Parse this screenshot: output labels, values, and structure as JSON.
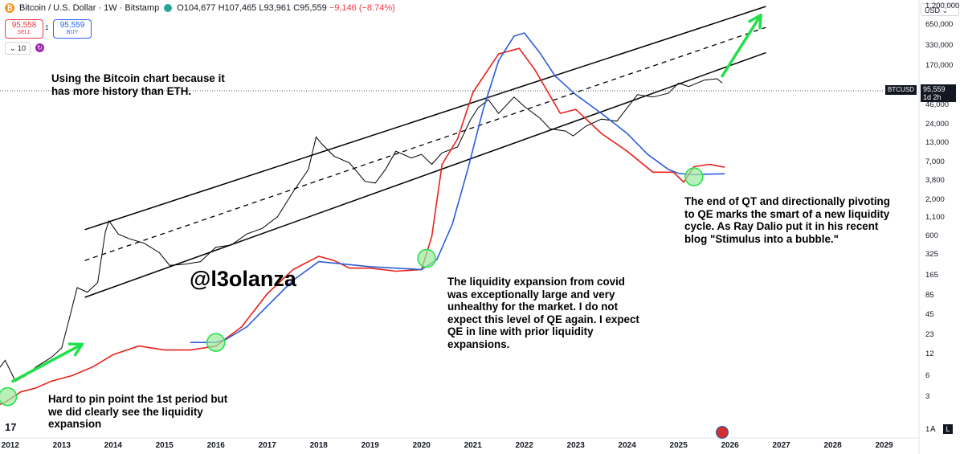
{
  "header": {
    "symbol_icon": "bitcoin-icon",
    "title": "Bitcoin / U.S. Dollar · 1W · Bitstamp",
    "ohlc": "O104,677 H107,465 L93,961 C95,559",
    "change": "−9,146 (−8.74%)"
  },
  "trade": {
    "sell_price": "95,558",
    "sell_label": "SELL",
    "spread": "1",
    "buy_price": "95,559",
    "buy_label": "BUY",
    "volume": "10"
  },
  "currency": "USD",
  "price_tag": {
    "ticker": "BTCUSD",
    "price": "95,559",
    "countdown": "1d 2h"
  },
  "y_ticks": [
    "1,200,000",
    "650,000",
    "330,000",
    "170,000",
    "46,000",
    "24,000",
    "13,000",
    "7,000",
    "3,800",
    "2,000",
    "1,100",
    "600",
    "325",
    "165",
    "85",
    "45",
    "23",
    "12",
    "6",
    "3",
    "1"
  ],
  "x_ticks": [
    "2012",
    "2013",
    "2014",
    "2015",
    "2016",
    "2017",
    "2018",
    "2019",
    "2020",
    "2021",
    "2022",
    "2023",
    "2024",
    "2025",
    "2026",
    "2027",
    "2028",
    "2029"
  ],
  "annotations": {
    "top_note": [
      "Using the Bitcoin chart because it",
      "has more history than ETH."
    ],
    "bottom_left": [
      "Hard to pin point the 1st period but",
      "we did clearly see the liquidity",
      "expansion"
    ],
    "middle": [
      "The liquidity expansion from covid",
      "was exceptionally large and very",
      "unhealthy for the market. I do not",
      "expect this level of QE again. I expect",
      "QE in line with prior liquidity",
      "expansions."
    ],
    "right": [
      "The end of QT and directionally pivoting",
      "to QE marks the smart of a new liquidity",
      "cycle. As Ray Dalio put it in his recent",
      "blog \"Stimulus into a bubble.\""
    ],
    "handle": "@l3olanza"
  },
  "buttons": {
    "auto": "A",
    "log": "L"
  },
  "colors": {
    "price": "#000000",
    "liquidity": "#e8211b",
    "liquidity_ma": "#2b5cd8",
    "arrow": "#22e04a",
    "circle": "#9be89b",
    "channel": "#000000"
  },
  "chart_data": {
    "type": "line",
    "y_scale": "log",
    "ylim": [
      1,
      1200000
    ],
    "xlim": [
      2011.8,
      2029.6
    ],
    "series": [
      {
        "x": [
          2011.5,
          2011.9,
          2012.1,
          2012.3,
          2012.5,
          2012.8,
          2013.0,
          2013.15,
          2013.3,
          2013.5,
          2013.7,
          2013.85,
          2013.92,
          2014.1,
          2014.3,
          2014.6,
          2014.9,
          2015.1,
          2015.4,
          2015.7,
          2016.0,
          2016.3,
          2016.6,
          2016.9,
          2017.2,
          2017.5,
          2017.8,
          2017.95,
          2018.05,
          2018.3,
          2018.6,
          2018.9,
          2019.1,
          2019.3,
          2019.5,
          2019.8,
          2020.0,
          2020.2,
          2020.4,
          2020.7,
          2020.95,
          2021.1,
          2021.3,
          2021.5,
          2021.8,
          2022.0,
          2022.3,
          2022.5,
          2022.8,
          2022.95,
          2023.2,
          2023.5,
          2023.8,
          2024.0,
          2024.2,
          2024.5,
          2024.8,
          2025.0,
          2025.2,
          2025.5,
          2025.75,
          2025.85
        ],
        "values": [
          4,
          10,
          5,
          6,
          8,
          11,
          15,
          40,
          110,
          95,
          130,
          700,
          1000,
          650,
          560,
          480,
          350,
          230,
          240,
          260,
          420,
          450,
          650,
          780,
          1150,
          2600,
          5500,
          16000,
          13000,
          8500,
          6800,
          3700,
          3500,
          5500,
          10000,
          8000,
          9000,
          6500,
          9500,
          11500,
          28000,
          42000,
          55000,
          35000,
          60000,
          44000,
          30000,
          21000,
          19500,
          16600,
          23000,
          29000,
          27000,
          42000,
          65000,
          60000,
          68000,
          95000,
          85000,
          105000,
          110000,
          95559
        ]
      },
      {
        "x": [
          2011.6,
          2011.9,
          2012.2,
          2012.5,
          2012.8,
          2013.2,
          2013.6,
          2014.0,
          2014.5,
          2015.0,
          2015.5,
          2016.0,
          2016.5,
          2017.0,
          2017.5,
          2018.0,
          2018.3,
          2018.6,
          2019.0,
          2019.5,
          2020.0,
          2020.2,
          2020.4,
          2020.7,
          2021.0,
          2021.5,
          2021.9,
          2022.2,
          2022.7,
          2023.0,
          2023.5,
          2024.0,
          2024.5,
          2024.9,
          2025.1,
          2025.3,
          2025.6,
          2025.9
        ],
        "values": [
          2,
          2.5,
          3.5,
          4,
          5,
          6,
          8,
          12,
          16,
          14,
          14,
          16,
          30,
          90,
          200,
          310,
          270,
          210,
          210,
          190,
          200,
          600,
          6500,
          15000,
          70000,
          250000,
          300000,
          150000,
          35000,
          40000,
          18000,
          10000,
          5000,
          5000,
          3600,
          6000,
          6500,
          5900
        ]
      },
      {
        "x": [
          2015.5,
          2016.0,
          2016.2,
          2016.6,
          2017.0,
          2017.5,
          2018.0,
          2018.5,
          2019.0,
          2019.5,
          2020.0,
          2020.3,
          2020.6,
          2020.9,
          2021.2,
          2021.5,
          2021.8,
          2022.0,
          2022.3,
          2022.6,
          2023.0,
          2023.5,
          2024.0,
          2024.4,
          2024.8,
          2025.0,
          2025.3,
          2025.6,
          2025.9
        ],
        "values": [
          18,
          18,
          20,
          30,
          60,
          140,
          260,
          240,
          220,
          210,
          200,
          280,
          900,
          5500,
          40000,
          200000,
          450000,
          500000,
          260000,
          120000,
          65000,
          35000,
          18000,
          9000,
          5500,
          4800,
          4600,
          4700,
          4750
        ]
      }
    ],
    "channel": {
      "upper": {
        "x": [
          2013.45,
          2026.7
        ],
        "values": [
          750,
          1200000
        ]
      },
      "middle": {
        "x": [
          2013.45,
          2026.7
        ],
        "values": [
          270,
          600000
        ]
      },
      "lower": {
        "x": [
          2013.45,
          2026.7
        ],
        "values": [
          80,
          260000
        ]
      }
    },
    "arrows": [
      {
        "x": [
          2012.05,
          2013.4
        ],
        "values": [
          5,
          17
        ]
      },
      {
        "x": [
          2025.85,
          2026.6
        ],
        "values": [
          120000,
          900000
        ]
      }
    ],
    "circles": [
      {
        "x": 2011.95,
        "value": 3
      },
      {
        "x": 2016.0,
        "value": 18
      },
      {
        "x": 2020.1,
        "value": 290
      },
      {
        "x": 2025.3,
        "value": 4300
      }
    ]
  }
}
